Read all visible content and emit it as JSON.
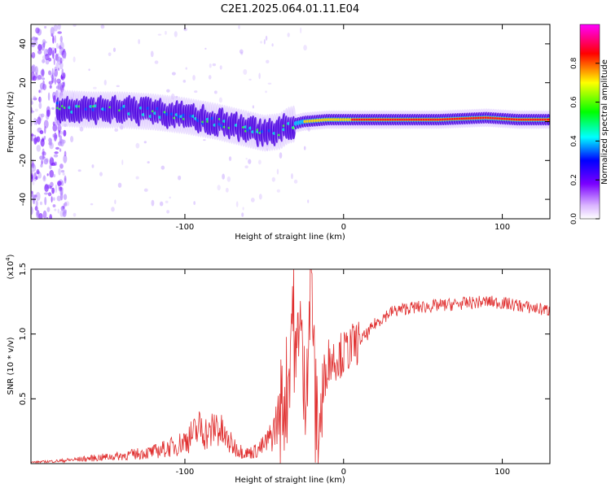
{
  "title": "C2E1.2025.064.01.11.E04",
  "chart_data": [
    {
      "type": "heatmap",
      "xlabel": "Height of straight line (km)",
      "ylabel": "Frequency (Hz)",
      "xlim": [
        -197,
        130
      ],
      "ylim": [
        -50,
        50
      ],
      "xticks": [
        -100,
        0,
        100
      ],
      "xtick_labels": [
        "-100",
        "0",
        "100"
      ],
      "yticks": [
        -40,
        -20,
        0,
        20,
        40
      ],
      "ytick_labels": [
        "-40",
        "-20",
        "0",
        "20",
        "40"
      ],
      "ridge": {
        "x": [
          -180,
          -160,
          -140,
          -120,
          -100,
          -80,
          -60,
          -50,
          -40,
          -35,
          -25,
          -10,
          0,
          20,
          60,
          90,
          110,
          130
        ],
        "y": [
          7,
          6,
          6,
          5,
          3,
          0,
          -4,
          -6,
          -5,
          -2,
          0,
          1,
          1,
          1,
          1,
          2,
          1,
          1
        ]
      },
      "colorbar": {
        "label": "Normalized spectral amplitude",
        "range": [
          0,
          1
        ],
        "ticks": [
          0,
          0.2,
          0.4,
          0.6,
          0.8
        ],
        "tick_labels": [
          "0.0",
          "0.2",
          "0.4",
          "0.6",
          "0.8"
        ],
        "colors": [
          "#ffffff",
          "#7a00ff",
          "#0000ff",
          "#00ffff",
          "#00ff00",
          "#ffff00",
          "#ff0000",
          "#ff00ff"
        ]
      },
      "grid": false
    },
    {
      "type": "line",
      "xlabel": "Height of straight line (km)",
      "ylabel": "SNR (10 * v/v)",
      "y_multiplier": "(x10",
      "y_multiplier_exp": "4",
      "y_multiplier_close": ")",
      "xlim": [
        -197,
        130
      ],
      "ylim": [
        0,
        1.5
      ],
      "xticks": [
        -100,
        0,
        100
      ],
      "xtick_labels": [
        "-100",
        "0",
        "100"
      ],
      "yticks": [
        0.5,
        1.0,
        1.5
      ],
      "ytick_labels": [
        "0.5",
        "1.0",
        "1.5"
      ],
      "series": [
        {
          "color": "#e03030",
          "x": [
            -197,
            -180,
            -160,
            -140,
            -120,
            -105,
            -95,
            -90,
            -85,
            -80,
            -75,
            -70,
            -65,
            -60,
            -55,
            -50,
            -45,
            -40,
            -35,
            -32,
            -30,
            -28,
            -25,
            -22,
            -20,
            -18,
            -15,
            -12,
            -10,
            -5,
            0,
            5,
            10,
            15,
            20,
            25,
            30,
            40,
            50,
            60,
            70,
            80,
            90,
            100,
            110,
            120,
            130
          ],
          "y": [
            0.01,
            0.02,
            0.04,
            0.06,
            0.09,
            0.14,
            0.22,
            0.28,
            0.22,
            0.3,
            0.2,
            0.14,
            0.1,
            0.08,
            0.1,
            0.14,
            0.22,
            0.4,
            0.6,
            1.3,
            0.6,
            1.3,
            0.5,
            1.0,
            1.5,
            0.4,
            0.3,
            0.6,
            0.8,
            0.82,
            0.85,
            0.9,
            0.95,
            1.0,
            1.08,
            1.13,
            1.17,
            1.2,
            1.21,
            1.22,
            1.23,
            1.24,
            1.25,
            1.24,
            1.22,
            1.2,
            1.18
          ]
        }
      ],
      "grid": false
    }
  ]
}
